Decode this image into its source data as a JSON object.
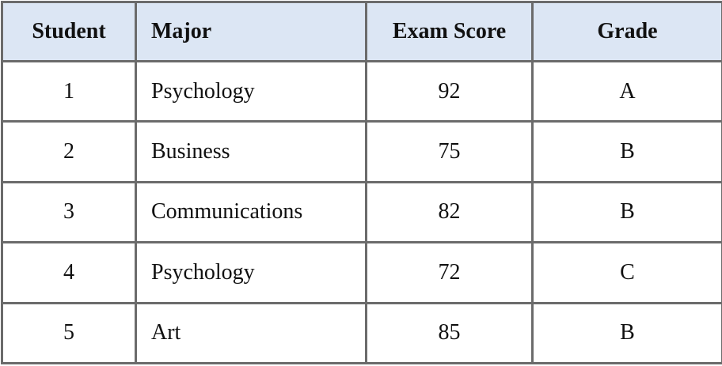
{
  "table": {
    "headers": [
      "Student",
      "Major",
      "Exam Score",
      "Grade"
    ],
    "rows": [
      [
        "1",
        "Psychology",
        "92",
        "A"
      ],
      [
        "2",
        "Business",
        "75",
        "B"
      ],
      [
        "3",
        "Communications",
        "82",
        "B"
      ],
      [
        "4",
        "Psychology",
        "72",
        "C"
      ],
      [
        "5",
        "Art",
        "85",
        "B"
      ]
    ]
  },
  "colors": {
    "header_bg": "#dce6f4",
    "border": "#6b6b6b"
  }
}
